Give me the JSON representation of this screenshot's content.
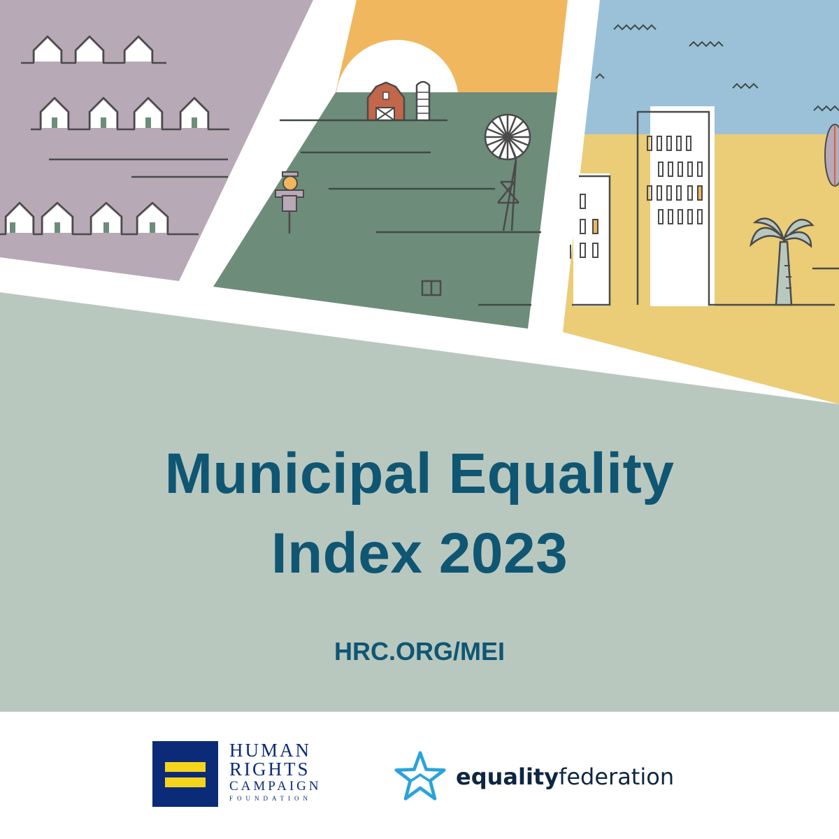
{
  "title": {
    "line1": "Municipal Equality",
    "line2": "Index 2023"
  },
  "url": "HRC.ORG/MEI",
  "logos": {
    "hrc": {
      "line1": "HUMAN",
      "line2": "RIGHTS",
      "line3": "CAMPAIGN",
      "line4": "FOUNDATION",
      "icon": "equal-sign-icon"
    },
    "equality_federation": {
      "bold": "equality",
      "regular": "federation",
      "icon": "star-icon"
    }
  },
  "colors": {
    "title": "#0f5673",
    "background_band": "#b9c8bf",
    "suburb_panel": "#b8a9b6",
    "rural_panel": "#6e8c7a",
    "rural_sky": "#f0b75e",
    "city_sky": "#9ac1d8",
    "city_ground": "#ebcc77",
    "hrc_blue": "#0b2a78",
    "hrc_yellow": "#f7d41c",
    "eqf_star": "#2aa3db"
  }
}
